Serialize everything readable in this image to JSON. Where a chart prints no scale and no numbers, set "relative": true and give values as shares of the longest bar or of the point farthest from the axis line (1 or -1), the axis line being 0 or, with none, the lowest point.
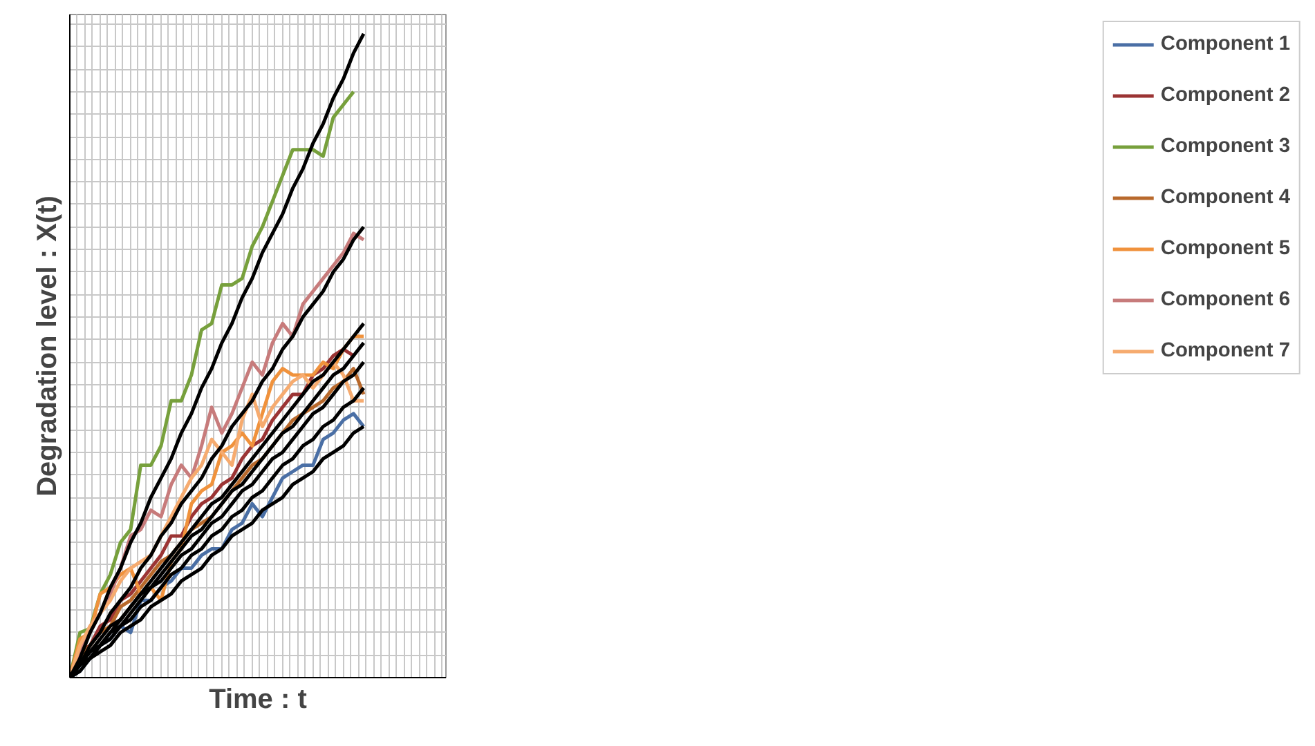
{
  "chart_data": {
    "type": "line",
    "relative": true,
    "xlabel": "Time : t",
    "ylabel": "Degradation level : X(t)",
    "grid": true,
    "legend": "top right",
    "line_style": "solid",
    "categories": [
      null,
      null,
      null,
      null,
      null,
      null,
      null,
      null,
      null,
      null,
      null,
      null,
      null,
      null,
      null,
      null,
      null,
      null,
      null,
      null,
      null,
      null,
      null,
      null,
      null,
      null,
      null,
      null,
      null,
      null
    ],
    "series": [
      {
        "name": "Component 1",
        "color": "#4a6fa5",
        "values": [
          0,
          0.01,
          0.03,
          0.05,
          0.06,
          0.08,
          0.07,
          0.12,
          0.12,
          0.14,
          0.15,
          0.17,
          0.17,
          0.19,
          0.2,
          0.2,
          0.23,
          0.24,
          0.27,
          0.25,
          0.28,
          0.31,
          0.32,
          0.33,
          0.33,
          0.37,
          0.38,
          0.4,
          0.41,
          0.39
        ]
      },
      {
        "name": "Component 2",
        "color": "#9b3434",
        "values": [
          0,
          0.04,
          0.05,
          0.08,
          0.09,
          0.12,
          0.13,
          0.15,
          0.17,
          0.19,
          0.22,
          0.22,
          0.25,
          0.27,
          0.28,
          0.3,
          0.31,
          0.34,
          0.36,
          0.37,
          0.4,
          0.42,
          0.44,
          0.44,
          0.47,
          0.48,
          0.5,
          0.51,
          0.5,
          null
        ]
      },
      {
        "name": "Component 3",
        "color": "#77a03c",
        "values": [
          0,
          0.07,
          0.076,
          0.13,
          0.16,
          0.21,
          0.23,
          0.33,
          0.33,
          0.36,
          0.43,
          0.43,
          0.47,
          0.54,
          0.55,
          0.61,
          0.61,
          0.62,
          0.67,
          0.7,
          0.74,
          0.78,
          0.82,
          0.82,
          0.82,
          0.81,
          0.87,
          0.89,
          0.91,
          null
        ]
      },
      {
        "name": "Component 4",
        "color": "#b8692c",
        "values": [
          0,
          0.03,
          0.05,
          0.07,
          0.08,
          0.11,
          0.12,
          0.14,
          0.16,
          0.18,
          0.19,
          0.21,
          0.23,
          0.24,
          0.25,
          0.27,
          0.29,
          0.31,
          0.33,
          0.34,
          0.36,
          0.38,
          0.4,
          0.41,
          0.42,
          0.43,
          0.45,
          0.46,
          0.48,
          0.44
        ]
      },
      {
        "name": "Component 5",
        "color": "#f0923c",
        "values": [
          0,
          0.06,
          0.07,
          0.13,
          0.14,
          0.16,
          0.17,
          0.13,
          0.14,
          0.12,
          0.18,
          0.2,
          0.27,
          0.29,
          0.3,
          0.35,
          0.36,
          0.38,
          0.36,
          0.41,
          0.46,
          0.48,
          0.47,
          0.47,
          0.47,
          0.49,
          0.48,
          0.51,
          0.53,
          0.53
        ]
      },
      {
        "name": "Component 6",
        "color": "#c77b7b",
        "values": [
          0,
          0.04,
          0.08,
          0.1,
          0.13,
          0.17,
          0.22,
          0.23,
          0.26,
          0.25,
          0.3,
          0.33,
          0.31,
          0.36,
          0.42,
          0.38,
          0.41,
          0.45,
          0.49,
          0.47,
          0.52,
          0.55,
          0.53,
          0.58,
          0.6,
          0.62,
          0.64,
          0.66,
          0.69,
          0.68
        ]
      },
      {
        "name": "Component 7",
        "color": "#f6ab6f",
        "values": [
          0,
          0.05,
          0.08,
          0.1,
          0.12,
          0.15,
          0.17,
          0.18,
          0.19,
          0.22,
          0.25,
          0.28,
          0.31,
          0.33,
          0.37,
          0.35,
          0.33,
          0.4,
          0.44,
          0.39,
          0.42,
          0.44,
          0.46,
          0.47,
          0.45,
          0.47,
          0.49,
          0.47,
          0.43,
          0.43
        ]
      },
      {
        "color": "#000000",
        "values": [
          0,
          0.03,
          0.07,
          0.1,
          0.14,
          0.17,
          0.21,
          0.24,
          0.28,
          0.31,
          0.34,
          0.38,
          0.41,
          0.45,
          0.48,
          0.52,
          0.55,
          0.59,
          0.62,
          0.66,
          0.69,
          0.72,
          0.76,
          0.79,
          0.83,
          0.86,
          0.9,
          0.93,
          0.97,
          1
        ]
      },
      {
        "color": "#000000",
        "values": [
          0,
          0.02,
          0.05,
          0.07,
          0.1,
          0.12,
          0.14,
          0.17,
          0.19,
          0.22,
          0.24,
          0.27,
          0.29,
          0.31,
          0.34,
          0.36,
          0.39,
          0.41,
          0.43,
          0.46,
          0.48,
          0.51,
          0.53,
          0.56,
          0.58,
          0.6,
          0.63,
          0.65,
          0.68,
          0.7
        ]
      },
      {
        "color": "#000000",
        "values": [
          0,
          0.02,
          0.04,
          0.06,
          0.08,
          0.09,
          0.11,
          0.13,
          0.15,
          0.17,
          0.19,
          0.21,
          0.23,
          0.25,
          0.27,
          0.28,
          0.3,
          0.32,
          0.34,
          0.36,
          0.38,
          0.4,
          0.42,
          0.44,
          0.46,
          0.47,
          0.49,
          0.51,
          0.53,
          0.55
        ]
      },
      {
        "color": "#000000",
        "values": [
          0,
          0.02,
          0.04,
          0.05,
          0.07,
          0.09,
          0.11,
          0.13,
          0.14,
          0.16,
          0.18,
          0.2,
          0.22,
          0.23,
          0.25,
          0.27,
          0.29,
          0.3,
          0.32,
          0.34,
          0.36,
          0.38,
          0.39,
          0.41,
          0.43,
          0.45,
          0.47,
          0.48,
          0.5,
          0.52
        ]
      },
      {
        "color": "#000000",
        "values": [
          0,
          0.02,
          0.03,
          0.05,
          0.07,
          0.08,
          0.1,
          0.12,
          0.14,
          0.15,
          0.17,
          0.19,
          0.2,
          0.22,
          0.24,
          0.25,
          0.27,
          0.29,
          0.3,
          0.32,
          0.34,
          0.35,
          0.37,
          0.39,
          0.41,
          0.42,
          0.44,
          0.46,
          0.47,
          0.49
        ]
      },
      {
        "color": "#000000",
        "values": [
          0,
          0.02,
          0.03,
          0.05,
          0.06,
          0.08,
          0.09,
          0.11,
          0.12,
          0.14,
          0.16,
          0.17,
          0.19,
          0.2,
          0.22,
          0.23,
          0.25,
          0.26,
          0.28,
          0.29,
          0.31,
          0.33,
          0.34,
          0.36,
          0.37,
          0.39,
          0.4,
          0.42,
          0.43,
          0.45
        ]
      },
      {
        "color": "#000000",
        "values": [
          0,
          0.01,
          0.03,
          0.04,
          0.05,
          0.07,
          0.08,
          0.09,
          0.11,
          0.12,
          0.13,
          0.15,
          0.16,
          0.17,
          0.19,
          0.2,
          0.22,
          0.23,
          0.24,
          0.26,
          0.27,
          0.28,
          0.3,
          0.31,
          0.32,
          0.34,
          0.35,
          0.36,
          0.38,
          0.39
        ]
      }
    ]
  }
}
